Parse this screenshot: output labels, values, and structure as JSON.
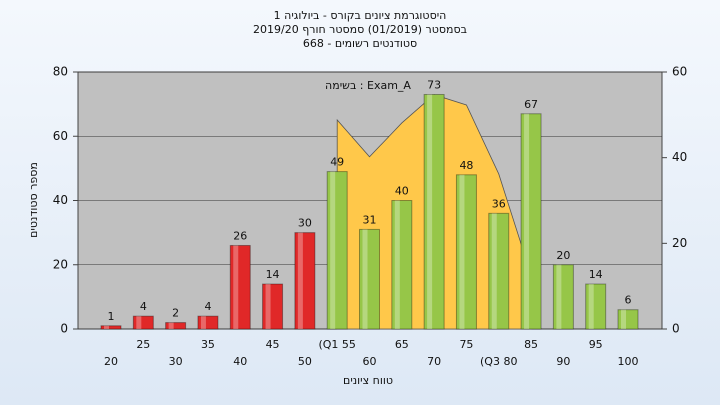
{
  "chart_data": {
    "type": "bar",
    "title": "היסטוגרמת ציונים בקורס - ביולוגיה 1",
    "subtitle": "בסמסטר (01/2019) סמסטר חורף 2019/20",
    "subtitle2": "סטודנטים רשומים - 668",
    "x_label": "טווח ציונים",
    "y_label": "מספר סטודנטים",
    "categories": [
      "20",
      "25",
      "30",
      "35",
      "40",
      "45",
      "50",
      "(Q1 55",
      "60",
      "65",
      "70",
      "75",
      "(Q3 80",
      "85",
      "90",
      "95",
      "100"
    ],
    "values": [
      1,
      4,
      2,
      4,
      26,
      14,
      30,
      49,
      31,
      40,
      73,
      48,
      36,
      67,
      20,
      14,
      6
    ],
    "colors": [
      "#e02828",
      "#e02828",
      "#e02828",
      "#e02828",
      "#e02828",
      "#e02828",
      "#e02828",
      "#96c648",
      "#96c648",
      "#96c648",
      "#96c648",
      "#96c648",
      "#96c648",
      "#96c648",
      "#96c648",
      "#96c648",
      "#96c648"
    ],
    "ylim": [
      0,
      80
    ],
    "yticks": [
      0,
      20,
      40,
      60,
      80
    ],
    "y2lim": [
      0,
      60
    ],
    "y2ticks": [
      0,
      20,
      40,
      60
    ],
    "grid": true,
    "series": [
      {
        "name": "בשימה : Exam_A",
        "color": "#ffc84a",
        "axis": "y2",
        "values": [
          null,
          null,
          null,
          null,
          null,
          null,
          null,
          48.8,
          40.2,
          48.1,
          54.7,
          52.3,
          36.2,
          12.6,
          null,
          null,
          null
        ]
      }
    ]
  }
}
